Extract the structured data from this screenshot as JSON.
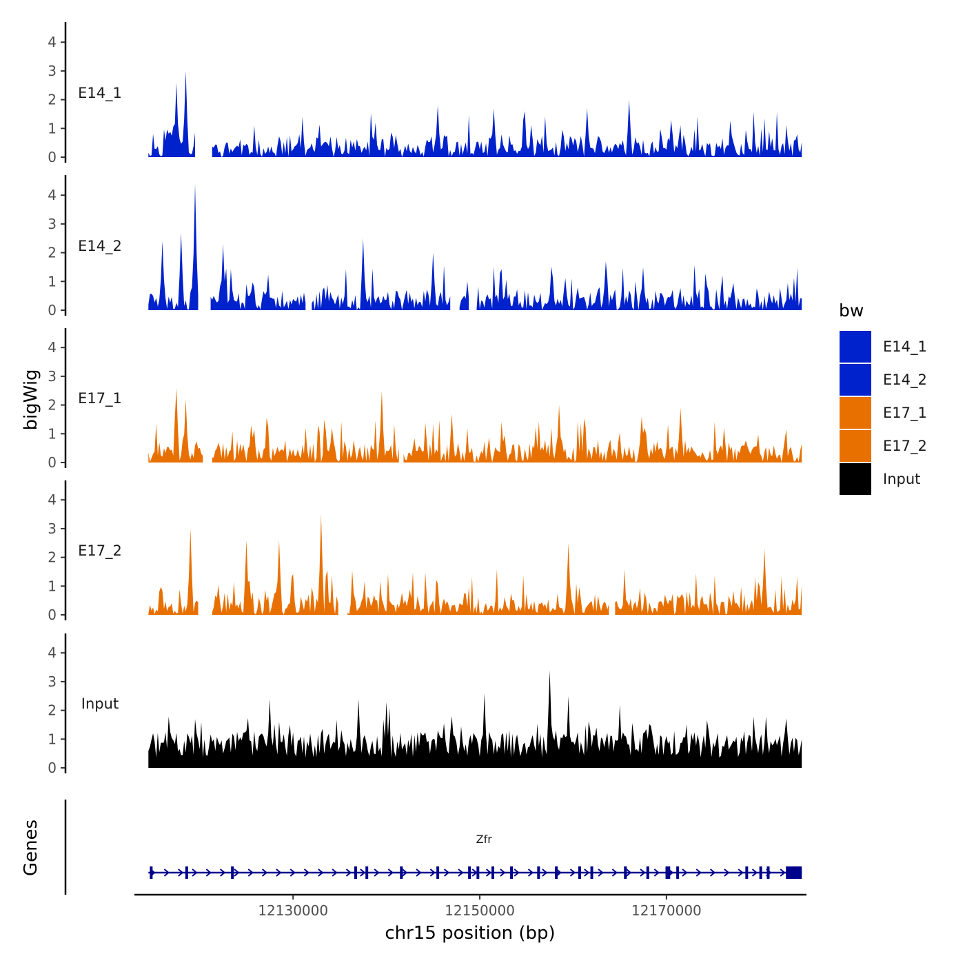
{
  "chart_data": {
    "type": "area",
    "xlabel": "chr15 position (bp)",
    "ylabel": "bigWig",
    "genes_label": "Genes",
    "x_range": [
      12113000,
      12185000
    ],
    "x_ticks": [
      12130000,
      12150000,
      12170000
    ],
    "x_tick_labels": [
      "12130000",
      "12150000",
      "12170000"
    ],
    "ylim": [
      0,
      4.6
    ],
    "y_ticks": [
      0,
      1,
      2,
      3,
      4
    ],
    "y_tick_labels": [
      "0",
      "1",
      "2",
      "3",
      "4"
    ],
    "data_range": [
      12114500,
      12184500
    ],
    "legend_title": "bw",
    "tracks": [
      {
        "name": "E14_1",
        "color": "#0022CC",
        "peak_max": 3.0,
        "seed": 11,
        "peaks": [
          [
            12117500,
            2.6
          ],
          [
            12118500,
            3.0
          ],
          [
            12145500,
            1.8
          ],
          [
            12151500,
            1.7
          ],
          [
            12161500,
            1.7
          ],
          [
            12166000,
            2.0
          ],
          [
            12170500,
            1.3
          ]
        ],
        "gaps": [
          [
            12119600,
            12121200
          ]
        ]
      },
      {
        "name": "E14_2",
        "color": "#0022CC",
        "peak_max": 4.4,
        "seed": 23,
        "peaks": [
          [
            12116000,
            2.4
          ],
          [
            12118000,
            2.7
          ],
          [
            12119500,
            4.4
          ],
          [
            12122500,
            2.3
          ],
          [
            12137500,
            2.5
          ],
          [
            12145000,
            2.0
          ],
          [
            12163500,
            1.7
          ]
        ],
        "gaps": [
          [
            12119900,
            12121000
          ],
          [
            12131500,
            12131900
          ],
          [
            12147000,
            12147800
          ],
          [
            12149000,
            12149500
          ]
        ]
      },
      {
        "name": "E17_1",
        "color": "#E87000",
        "peak_max": 2.6,
        "seed": 37,
        "peaks": [
          [
            12117500,
            2.6
          ],
          [
            12118500,
            2.2
          ],
          [
            12125500,
            1.3
          ],
          [
            12139500,
            2.5
          ],
          [
            12147000,
            1.7
          ],
          [
            12158500,
            2.0
          ],
          [
            12171500,
            1.9
          ]
        ],
        "gaps": [
          [
            12120400,
            12121200
          ],
          [
            12141500,
            12141800
          ]
        ]
      },
      {
        "name": "E17_2",
        "color": "#E87000",
        "peak_max": 3.5,
        "seed": 53,
        "peaks": [
          [
            12119000,
            3.0
          ],
          [
            12125000,
            2.6
          ],
          [
            12128500,
            2.6
          ],
          [
            12133000,
            3.5
          ],
          [
            12133600,
            2.0
          ],
          [
            12159500,
            2.5
          ],
          [
            12180500,
            2.3
          ]
        ],
        "gaps": [
          [
            12119900,
            12121200
          ],
          [
            12135000,
            12135800
          ],
          [
            12164000,
            12164400
          ]
        ]
      },
      {
        "name": "Input",
        "color": "#000000",
        "peak_max": 3.4,
        "seed": 71,
        "peaks": [
          [
            12157500,
            3.4
          ],
          [
            12159500,
            2.5
          ],
          [
            12150500,
            2.6
          ],
          [
            12137000,
            2.4
          ],
          [
            12140000,
            2.3
          ],
          [
            12127500,
            2.4
          ],
          [
            12165000,
            2.2
          ]
        ],
        "gaps": []
      }
    ],
    "gene": {
      "name": "Zfr",
      "color": "#00008B",
      "start": 12114500,
      "end": 12184500,
      "strand": "+",
      "exons": [
        12114800,
        12118600,
        12123500,
        12136700,
        12137900,
        12141600,
        12145500,
        12148900,
        12149800,
        12151400,
        12153400,
        12156300,
        12158200,
        12160700,
        12162000,
        12165600,
        12168000,
        12170100,
        12171200,
        12178600,
        12180100,
        12180900
      ],
      "big_exons": [
        [
          12169900,
          12170400
        ],
        [
          12182800,
          12184500
        ]
      ]
    }
  }
}
